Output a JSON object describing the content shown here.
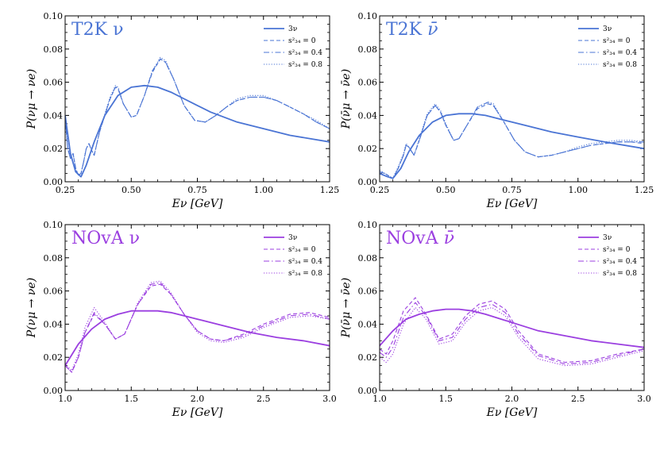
{
  "chart_data": [
    {
      "type": "line",
      "title": "T2K ν",
      "title_accent": "",
      "color": "#4a74d4",
      "xlabel": "Eν [GeV]",
      "ylabel": "P(νμ → νe)",
      "xlim": [
        0.25,
        1.25
      ],
      "ylim": [
        0.0,
        0.1
      ],
      "xticks": [
        "0.25",
        "0.50",
        "0.75",
        "1.00",
        "1.25"
      ],
      "yticks": [
        "0.00",
        "0.02",
        "0.04",
        "0.06",
        "0.08",
        "0.10"
      ],
      "legend": [
        "3ν",
        "s²₃₄ = 0",
        "s²₃₄ = 0.4",
        "s²₃₄ = 0.8"
      ],
      "series": [
        {
          "name": "3ν",
          "style": "solid",
          "x": [
            0.25,
            0.27,
            0.29,
            0.31,
            0.33,
            0.36,
            0.4,
            0.45,
            0.5,
            0.55,
            0.6,
            0.65,
            0.7,
            0.75,
            0.8,
            0.9,
            1.0,
            1.1,
            1.25
          ],
          "y": [
            0.04,
            0.017,
            0.006,
            0.003,
            0.01,
            0.024,
            0.04,
            0.052,
            0.057,
            0.058,
            0.057,
            0.054,
            0.05,
            0.046,
            0.042,
            0.036,
            0.032,
            0.028,
            0.024
          ]
        },
        {
          "name": "s²₃₄ = 0",
          "style": "dashed",
          "x": [
            0.25,
            0.26,
            0.27,
            0.28,
            0.29,
            0.3,
            0.31,
            0.32,
            0.33,
            0.34,
            0.35,
            0.36,
            0.38,
            0.4,
            0.42,
            0.44,
            0.45,
            0.47,
            0.5,
            0.52,
            0.55,
            0.58,
            0.61,
            0.63,
            0.66,
            0.7,
            0.74,
            0.78,
            0.82,
            0.86,
            0.9,
            0.95,
            1.0,
            1.05,
            1.1,
            1.15,
            1.2,
            1.25
          ],
          "y": [
            0.038,
            0.02,
            0.014,
            0.017,
            0.008,
            0.004,
            0.005,
            0.012,
            0.02,
            0.023,
            0.019,
            0.016,
            0.03,
            0.04,
            0.05,
            0.057,
            0.056,
            0.047,
            0.039,
            0.04,
            0.052,
            0.066,
            0.074,
            0.072,
            0.062,
            0.046,
            0.037,
            0.036,
            0.04,
            0.045,
            0.049,
            0.051,
            0.051,
            0.049,
            0.045,
            0.041,
            0.036,
            0.032
          ]
        },
        {
          "name": "s²₃₄ = 0.4",
          "style": "dashdot",
          "x": [
            0.25,
            0.26,
            0.27,
            0.28,
            0.29,
            0.3,
            0.31,
            0.32,
            0.33,
            0.34,
            0.35,
            0.36,
            0.38,
            0.4,
            0.42,
            0.44,
            0.45,
            0.47,
            0.5,
            0.52,
            0.55,
            0.58,
            0.61,
            0.63,
            0.66,
            0.7,
            0.74,
            0.78,
            0.82,
            0.86,
            0.9,
            0.95,
            1.0,
            1.05,
            1.1,
            1.15,
            1.2,
            1.25
          ],
          "y": [
            0.039,
            0.02,
            0.014,
            0.017,
            0.008,
            0.004,
            0.005,
            0.012,
            0.02,
            0.023,
            0.019,
            0.016,
            0.03,
            0.04,
            0.05,
            0.057,
            0.057,
            0.047,
            0.039,
            0.04,
            0.052,
            0.067,
            0.074,
            0.072,
            0.062,
            0.046,
            0.037,
            0.036,
            0.04,
            0.045,
            0.049,
            0.051,
            0.051,
            0.049,
            0.045,
            0.041,
            0.036,
            0.032
          ]
        },
        {
          "name": "s²₃₄ = 0.8",
          "style": "dotted",
          "x": [
            0.25,
            0.26,
            0.27,
            0.28,
            0.29,
            0.3,
            0.31,
            0.32,
            0.33,
            0.34,
            0.35,
            0.36,
            0.38,
            0.4,
            0.42,
            0.44,
            0.45,
            0.47,
            0.5,
            0.52,
            0.55,
            0.58,
            0.61,
            0.63,
            0.66,
            0.7,
            0.74,
            0.78,
            0.82,
            0.86,
            0.9,
            0.95,
            1.0,
            1.05,
            1.1,
            1.15,
            1.2,
            1.25
          ],
          "y": [
            0.04,
            0.021,
            0.015,
            0.017,
            0.008,
            0.004,
            0.005,
            0.012,
            0.02,
            0.023,
            0.019,
            0.016,
            0.03,
            0.041,
            0.051,
            0.058,
            0.057,
            0.047,
            0.039,
            0.04,
            0.052,
            0.067,
            0.075,
            0.073,
            0.062,
            0.046,
            0.037,
            0.036,
            0.04,
            0.045,
            0.05,
            0.052,
            0.052,
            0.049,
            0.045,
            0.041,
            0.037,
            0.032
          ]
        }
      ]
    },
    {
      "type": "line",
      "title": "T2K ",
      "title_accent": "ν̄",
      "color": "#4a74d4",
      "xlabel": "Eν [GeV]",
      "ylabel": "P(ν̄μ → ν̄e)",
      "xlim": [
        0.25,
        1.25
      ],
      "ylim": [
        0.0,
        0.1
      ],
      "xticks": [
        "0.25",
        "0.50",
        "0.75",
        "1.00",
        "1.25"
      ],
      "yticks": [
        "0.00",
        "0.02",
        "0.04",
        "0.06",
        "0.08",
        "0.10"
      ],
      "legend": [
        "3ν",
        "s²₃₄ = 0",
        "s²₃₄ = 0.4",
        "s²₃₄ = 0.8"
      ],
      "series": [
        {
          "name": "3ν",
          "style": "solid",
          "x": [
            0.25,
            0.28,
            0.3,
            0.33,
            0.36,
            0.4,
            0.45,
            0.5,
            0.55,
            0.6,
            0.65,
            0.7,
            0.75,
            0.8,
            0.9,
            1.0,
            1.1,
            1.25
          ],
          "y": [
            0.005,
            0.003,
            0.002,
            0.008,
            0.018,
            0.028,
            0.036,
            0.04,
            0.041,
            0.041,
            0.04,
            0.038,
            0.036,
            0.034,
            0.03,
            0.027,
            0.024,
            0.02
          ]
        },
        {
          "name": "s²₃₄ = 0",
          "style": "dashed",
          "x": [
            0.25,
            0.27,
            0.29,
            0.3,
            0.32,
            0.34,
            0.35,
            0.36,
            0.38,
            0.4,
            0.43,
            0.46,
            0.48,
            0.5,
            0.53,
            0.55,
            0.58,
            0.62,
            0.66,
            0.68,
            0.72,
            0.76,
            0.8,
            0.85,
            0.9,
            0.95,
            1.0,
            1.05,
            1.1,
            1.15,
            1.2,
            1.25
          ],
          "y": [
            0.006,
            0.005,
            0.003,
            0.002,
            0.008,
            0.016,
            0.022,
            0.021,
            0.016,
            0.025,
            0.04,
            0.046,
            0.042,
            0.034,
            0.025,
            0.026,
            0.034,
            0.044,
            0.047,
            0.046,
            0.036,
            0.025,
            0.018,
            0.015,
            0.016,
            0.018,
            0.02,
            0.022,
            0.023,
            0.024,
            0.024,
            0.023
          ]
        },
        {
          "name": "s²₃₄ = 0.4",
          "style": "dashdot",
          "x": [
            0.25,
            0.27,
            0.29,
            0.3,
            0.32,
            0.34,
            0.35,
            0.36,
            0.38,
            0.4,
            0.43,
            0.46,
            0.48,
            0.5,
            0.53,
            0.55,
            0.58,
            0.62,
            0.66,
            0.68,
            0.72,
            0.76,
            0.8,
            0.85,
            0.9,
            0.95,
            1.0,
            1.05,
            1.1,
            1.15,
            1.2,
            1.25
          ],
          "y": [
            0.006,
            0.005,
            0.003,
            0.002,
            0.008,
            0.016,
            0.022,
            0.021,
            0.016,
            0.025,
            0.04,
            0.046,
            0.042,
            0.034,
            0.025,
            0.026,
            0.034,
            0.045,
            0.048,
            0.046,
            0.036,
            0.025,
            0.018,
            0.015,
            0.016,
            0.018,
            0.02,
            0.022,
            0.023,
            0.024,
            0.024,
            0.024
          ]
        },
        {
          "name": "s²₃₄ = 0.8",
          "style": "dotted",
          "x": [
            0.25,
            0.27,
            0.29,
            0.3,
            0.32,
            0.34,
            0.35,
            0.36,
            0.38,
            0.4,
            0.43,
            0.46,
            0.48,
            0.5,
            0.53,
            0.55,
            0.58,
            0.62,
            0.66,
            0.68,
            0.72,
            0.76,
            0.8,
            0.85,
            0.9,
            0.95,
            1.0,
            1.05,
            1.1,
            1.15,
            1.2,
            1.25
          ],
          "y": [
            0.007,
            0.005,
            0.003,
            0.002,
            0.009,
            0.017,
            0.023,
            0.021,
            0.016,
            0.026,
            0.041,
            0.047,
            0.043,
            0.035,
            0.025,
            0.026,
            0.034,
            0.045,
            0.048,
            0.047,
            0.036,
            0.025,
            0.018,
            0.015,
            0.016,
            0.018,
            0.021,
            0.023,
            0.024,
            0.025,
            0.025,
            0.024
          ]
        }
      ]
    },
    {
      "type": "line",
      "title": "NOvA ν",
      "title_accent": "",
      "color": "#9b3fe0",
      "xlabel": "Eν [GeV]",
      "ylabel": "P(νμ → νe)",
      "xlim": [
        1.0,
        3.0
      ],
      "ylim": [
        0.0,
        0.1
      ],
      "xticks": [
        "1.0",
        "1.5",
        "2.0",
        "2.5",
        "3.0"
      ],
      "yticks": [
        "0.00",
        "0.02",
        "0.04",
        "0.06",
        "0.08",
        "0.10"
      ],
      "legend": [
        "3ν",
        "s²₃₄ = 0",
        "s²₃₄ = 0.4",
        "s²₃₄ = 0.8"
      ],
      "series": [
        {
          "name": "3ν",
          "style": "solid",
          "x": [
            1.0,
            1.1,
            1.2,
            1.3,
            1.4,
            1.5,
            1.6,
            1.7,
            1.8,
            1.9,
            2.0,
            2.2,
            2.4,
            2.6,
            2.8,
            3.0
          ],
          "y": [
            0.015,
            0.028,
            0.037,
            0.043,
            0.046,
            0.048,
            0.048,
            0.048,
            0.047,
            0.045,
            0.043,
            0.039,
            0.035,
            0.032,
            0.03,
            0.027
          ]
        },
        {
          "name": "s²₃₄ = 0",
          "style": "dashed",
          "x": [
            1.0,
            1.05,
            1.1,
            1.15,
            1.22,
            1.3,
            1.38,
            1.45,
            1.55,
            1.65,
            1.72,
            1.8,
            1.9,
            2.0,
            2.1,
            2.2,
            2.35,
            2.5,
            2.7,
            2.85,
            3.0
          ],
          "y": [
            0.015,
            0.011,
            0.02,
            0.035,
            0.046,
            0.04,
            0.031,
            0.034,
            0.052,
            0.063,
            0.064,
            0.058,
            0.046,
            0.036,
            0.031,
            0.03,
            0.034,
            0.04,
            0.046,
            0.047,
            0.044
          ]
        },
        {
          "name": "s²₃₄ = 0.4",
          "style": "dashdot",
          "x": [
            1.0,
            1.05,
            1.1,
            1.15,
            1.22,
            1.3,
            1.38,
            1.45,
            1.55,
            1.65,
            1.72,
            1.8,
            1.9,
            2.0,
            2.1,
            2.2,
            2.35,
            2.5,
            2.7,
            2.85,
            3.0
          ],
          "y": [
            0.015,
            0.011,
            0.02,
            0.035,
            0.047,
            0.04,
            0.031,
            0.034,
            0.052,
            0.064,
            0.065,
            0.058,
            0.046,
            0.036,
            0.031,
            0.03,
            0.033,
            0.039,
            0.045,
            0.046,
            0.043
          ]
        },
        {
          "name": "s²₃₄ = 0.8",
          "style": "dotted",
          "x": [
            1.0,
            1.05,
            1.1,
            1.15,
            1.22,
            1.3,
            1.38,
            1.45,
            1.55,
            1.65,
            1.72,
            1.8,
            1.9,
            2.0,
            2.1,
            2.2,
            2.35,
            2.5,
            2.7,
            2.85,
            3.0
          ],
          "y": [
            0.016,
            0.012,
            0.022,
            0.038,
            0.05,
            0.041,
            0.031,
            0.034,
            0.053,
            0.065,
            0.066,
            0.059,
            0.046,
            0.035,
            0.03,
            0.029,
            0.032,
            0.038,
            0.044,
            0.045,
            0.043
          ]
        }
      ]
    },
    {
      "type": "line",
      "title": "NOvA ",
      "title_accent": "ν̄",
      "color": "#9b3fe0",
      "xlabel": "Eν [GeV]",
      "ylabel": "P(ν̄μ → ν̄e)",
      "xlim": [
        1.0,
        3.0
      ],
      "ylim": [
        0.0,
        0.1
      ],
      "xticks": [
        "1.0",
        "1.5",
        "2.0",
        "2.5",
        "3.0"
      ],
      "yticks": [
        "0.00",
        "0.02",
        "0.04",
        "0.06",
        "0.08",
        "0.10"
      ],
      "legend": [
        "3ν",
        "s²₃₄ = 0",
        "s²₃₄ = 0.4",
        "s²₃₄ = 0.8"
      ],
      "series": [
        {
          "name": "3ν",
          "style": "solid",
          "x": [
            1.0,
            1.1,
            1.2,
            1.3,
            1.4,
            1.5,
            1.6,
            1.7,
            1.8,
            2.0,
            2.2,
            2.4,
            2.6,
            2.8,
            3.0
          ],
          "y": [
            0.027,
            0.036,
            0.043,
            0.046,
            0.048,
            0.049,
            0.049,
            0.048,
            0.046,
            0.041,
            0.036,
            0.033,
            0.03,
            0.028,
            0.026
          ]
        },
        {
          "name": "s²₃₄ = 0",
          "style": "dashed",
          "x": [
            1.0,
            1.05,
            1.1,
            1.18,
            1.27,
            1.35,
            1.45,
            1.55,
            1.65,
            1.75,
            1.85,
            1.95,
            2.05,
            2.2,
            2.4,
            2.6,
            2.8,
            3.0
          ],
          "y": [
            0.025,
            0.022,
            0.03,
            0.048,
            0.056,
            0.046,
            0.031,
            0.034,
            0.045,
            0.052,
            0.054,
            0.049,
            0.036,
            0.022,
            0.017,
            0.018,
            0.022,
            0.025
          ]
        },
        {
          "name": "s²₃₄ = 0.4",
          "style": "dashdot",
          "x": [
            1.0,
            1.05,
            1.1,
            1.18,
            1.27,
            1.35,
            1.45,
            1.55,
            1.65,
            1.75,
            1.85,
            1.95,
            2.05,
            2.2,
            2.4,
            2.6,
            2.8,
            3.0
          ],
          "y": [
            0.023,
            0.02,
            0.026,
            0.044,
            0.053,
            0.045,
            0.03,
            0.032,
            0.043,
            0.05,
            0.052,
            0.047,
            0.034,
            0.021,
            0.016,
            0.017,
            0.021,
            0.025
          ]
        },
        {
          "name": "s²₃₄ = 0.8",
          "style": "dotted",
          "x": [
            1.0,
            1.05,
            1.1,
            1.18,
            1.27,
            1.35,
            1.45,
            1.55,
            1.65,
            1.75,
            1.85,
            1.95,
            2.05,
            2.2,
            2.4,
            2.6,
            2.8,
            3.0
          ],
          "y": [
            0.02,
            0.017,
            0.022,
            0.04,
            0.05,
            0.043,
            0.028,
            0.03,
            0.041,
            0.048,
            0.05,
            0.045,
            0.032,
            0.019,
            0.015,
            0.016,
            0.02,
            0.024
          ]
        }
      ]
    }
  ]
}
